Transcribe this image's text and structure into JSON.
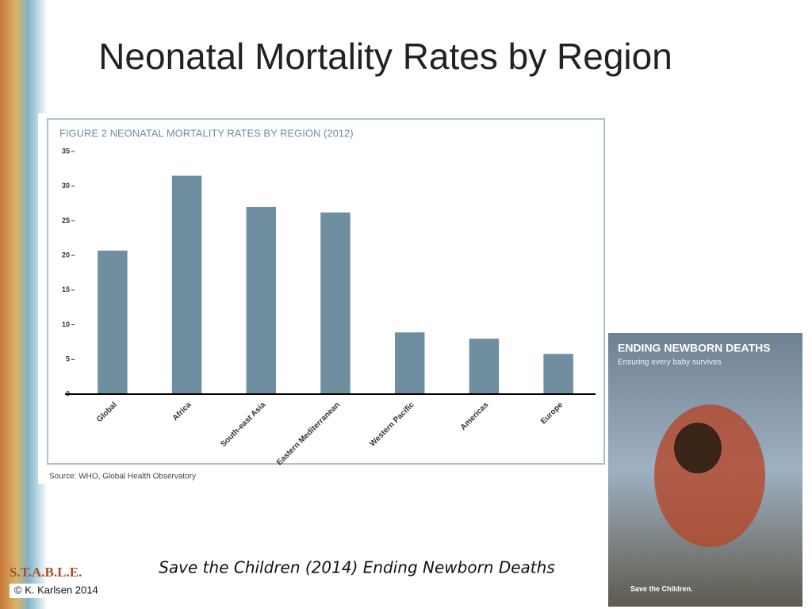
{
  "slide_title": "Neonatal Mortality Rates by Region",
  "chart_data": {
    "type": "bar",
    "title": "FIGURE 2  NEONATAL MORTALITY RATES BY REGION (2012)",
    "categories": [
      "Global",
      "Africa",
      "South-east Asia",
      "Eastern Mediterranean",
      "Western Pacific",
      "Americas",
      "Europe"
    ],
    "values": [
      20.7,
      31.5,
      27.0,
      26.2,
      8.9,
      8.0,
      5.8
    ],
    "color": "#6f8fa1",
    "ylim": [
      0,
      35
    ],
    "yticks": [
      0,
      5,
      10,
      15,
      20,
      25,
      30,
      35
    ],
    "grid": false,
    "source": "Source: WHO, Global Health Observatory"
  },
  "report_cover": {
    "title": "ENDING NEWBORN DEATHS",
    "subtitle": "Ensuring every baby survives",
    "publisher": "Save the Children."
  },
  "caption": "Save the Children (2014) Ending Newborn Deaths",
  "logo": "S.T.A.B.L.E.",
  "copyright": "© K. Karlsen 2014"
}
